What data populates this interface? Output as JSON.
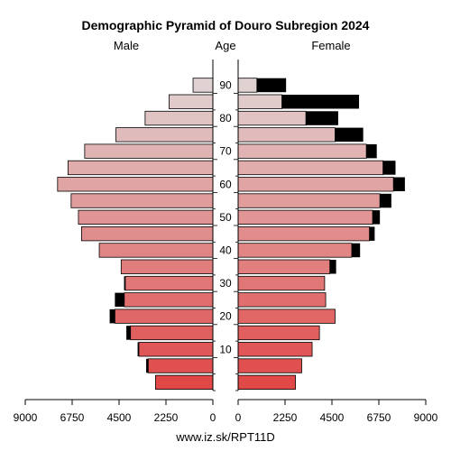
{
  "chart_data": {
    "type": "bar",
    "title": "Demographic Pyramid of Douro Subregion 2024",
    "left_label": "Male",
    "center_label": "Age",
    "right_label": "Female",
    "footer": "www.iz.sk/RPT11D",
    "x_ticks": [
      "9000",
      "6750",
      "4500",
      "2250",
      "0",
      "2250",
      "4500",
      "6750",
      "9000"
    ],
    "xlim": [
      0,
      9000
    ],
    "age_ticks": [
      "10",
      "20",
      "30",
      "40",
      "50",
      "60",
      "70",
      "80",
      "90"
    ],
    "age_groups": [
      "0-4",
      "5-9",
      "10-14",
      "15-19",
      "20-24",
      "25-29",
      "30-34",
      "35-39",
      "40-44",
      "45-49",
      "50-54",
      "55-59",
      "60-64",
      "65-69",
      "70-74",
      "75-79",
      "80-84",
      "85-89",
      "90+"
    ],
    "series": [
      {
        "name": "Male",
        "values": [
          2750,
          3100,
          3550,
          3950,
          4700,
          4250,
          4200,
          4400,
          5450,
          6300,
          6450,
          6800,
          7450,
          6950,
          6150,
          4650,
          3250,
          2100,
          950
        ],
        "excess_values": [
          0,
          100,
          60,
          200,
          250,
          450,
          60,
          0,
          0,
          0,
          0,
          0,
          0,
          0,
          0,
          0,
          0,
          0,
          0
        ]
      },
      {
        "name": "Female",
        "values": [
          2750,
          3050,
          3550,
          3900,
          4650,
          4200,
          4150,
          4400,
          5450,
          6300,
          6450,
          6800,
          7450,
          6950,
          6150,
          4650,
          3250,
          2100,
          900
        ],
        "excess_values": [
          0,
          0,
          0,
          0,
          0,
          0,
          0,
          300,
          400,
          250,
          350,
          550,
          550,
          600,
          500,
          1350,
          1550,
          3700,
          1400
        ]
      }
    ]
  }
}
